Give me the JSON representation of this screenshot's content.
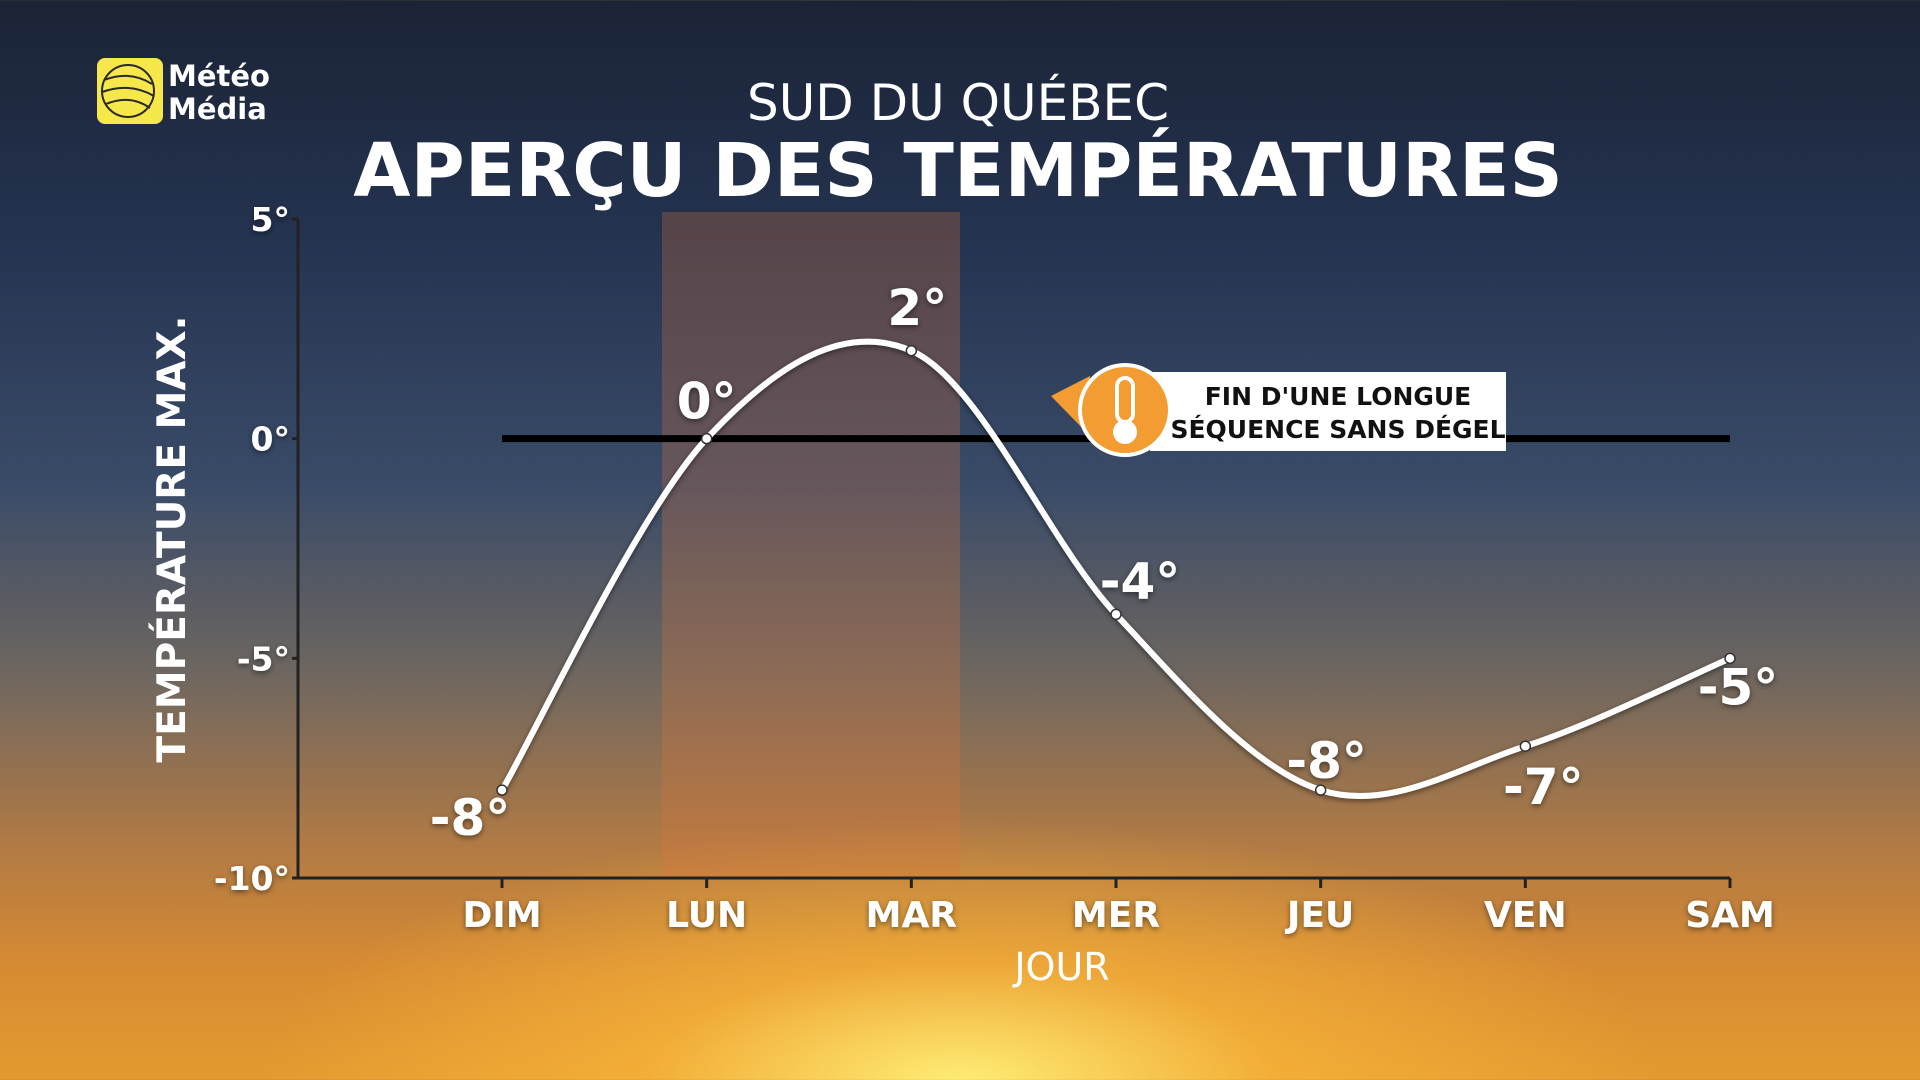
{
  "logo": [
    "Météo",
    "Média"
  ],
  "chart_data": {
    "type": "line",
    "subtitle": "SUD DU QUÉBEC",
    "title": "APERÇU DES TEMPÉRATURES",
    "y_label": "TEMPÉRATURE MAX.",
    "x_label": "JOUR",
    "categories": [
      "DIM",
      "LUN",
      "MAR",
      "MER",
      "JEU",
      "VEN",
      "SAM"
    ],
    "values": [
      -8,
      0,
      2,
      -4,
      -8,
      -7,
      -5
    ],
    "value_labels": [
      "-8°",
      "0°",
      "2°",
      "-4°",
      "-8°",
      "-7°",
      "-5°"
    ],
    "color": "#ffffff",
    "ylim": [
      -10,
      5
    ],
    "yticks": [
      {
        "value": 5,
        "label": "5°"
      },
      {
        "value": 0,
        "label": "0°"
      },
      {
        "value": -5,
        "label": "-5°"
      },
      {
        "value": -10,
        "label": "-10°"
      }
    ],
    "reference_line": 0,
    "annotation": [
      "FIN D'UNE LONGUE",
      "SÉQUENCE SANS DÉGEL"
    ]
  }
}
